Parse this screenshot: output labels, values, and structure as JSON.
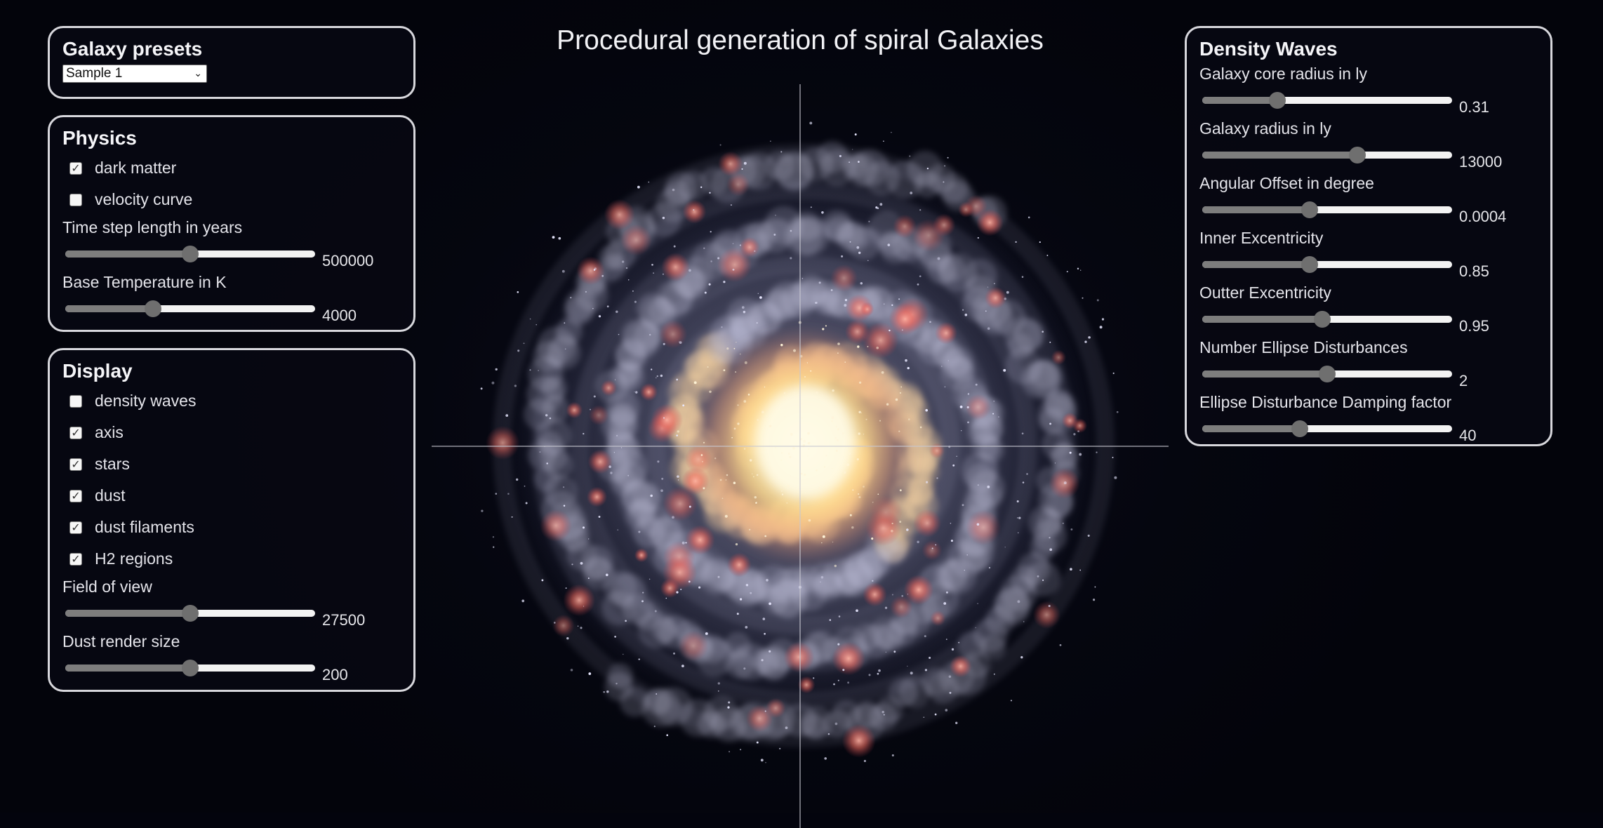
{
  "title": "Procedural generation of spiral Galaxies",
  "presets": {
    "heading": "Galaxy presets",
    "selected": "Sample 1",
    "icon": "chevron-down-icon"
  },
  "physics": {
    "heading": "Physics",
    "checks": [
      {
        "label": "dark matter",
        "checked": true
      },
      {
        "label": "velocity curve",
        "checked": false
      }
    ],
    "sliders": [
      {
        "label": "Time step length in years",
        "value": "500000",
        "level": 0.5
      },
      {
        "label": "Base Temperature in K",
        "value": "4000",
        "level": 0.35
      }
    ]
  },
  "display": {
    "heading": "Display",
    "checks": [
      {
        "label": "density waves",
        "checked": false
      },
      {
        "label": "axis",
        "checked": true
      },
      {
        "label": "stars",
        "checked": true
      },
      {
        "label": "dust",
        "checked": true
      },
      {
        "label": "dust filaments",
        "checked": true
      },
      {
        "label": "H2 regions",
        "checked": true
      }
    ],
    "sliders": [
      {
        "label": "Field of view",
        "value": "27500",
        "level": 0.5
      },
      {
        "label": "Dust render size",
        "value": "200",
        "level": 0.5
      }
    ]
  },
  "density_waves": {
    "heading": "Density Waves",
    "sliders": [
      {
        "label": "Galaxy core radius in ly",
        "value": "0.31",
        "level": 0.3
      },
      {
        "label": "Galaxy radius in ly",
        "value": "13000",
        "level": 0.62
      },
      {
        "label": "Angular Offset in degree",
        "value": "0.0004",
        "level": 0.43
      },
      {
        "label": "Inner Excentricity",
        "value": "0.85",
        "level": 0.43
      },
      {
        "label": "Outter Excentricity",
        "value": "0.95",
        "level": 0.48
      },
      {
        "label": "Number Ellipse Disturbances",
        "value": "2",
        "level": 0.5
      },
      {
        "label": "Ellipse Disturbance Damping factor",
        "value": "40",
        "level": 0.39
      }
    ]
  },
  "colors": {
    "panel_border": "#d7d7dc",
    "slider_fill": "#7d7d7d",
    "slider_track": "#f3f3f3",
    "background": "#03040d"
  }
}
